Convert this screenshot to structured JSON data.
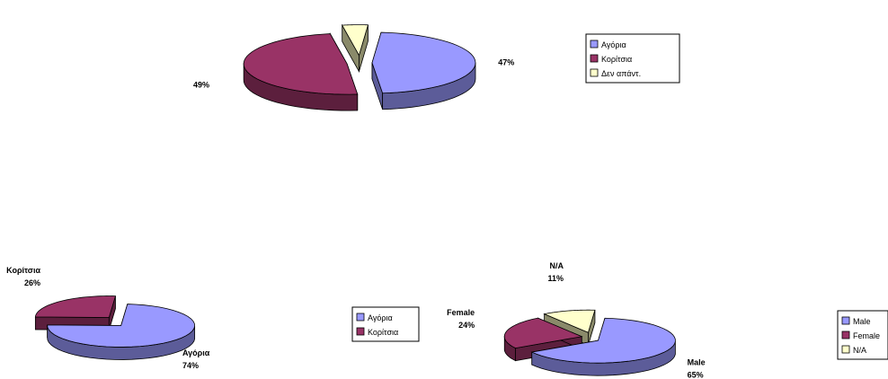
{
  "colors": {
    "slice1": "#9999ff",
    "slice2": "#993366",
    "slice3": "#ffffcc",
    "slice3_side": "#8a8a6a",
    "outline": "#000000"
  },
  "chart_data": [
    {
      "type": "pie",
      "style": "3d-exploded",
      "slices": [
        {
          "label": "Αγόρια",
          "value": 47,
          "value_label": "47%"
        },
        {
          "label": "Κορίτσια",
          "value": 49,
          "value_label": "49%"
        },
        {
          "label": "Δεν απάντ.",
          "value": 4,
          "value_label": "4%"
        }
      ],
      "legend": [
        "Αγόρια",
        "Κορίτσια",
        "Δεν απάντ."
      ],
      "legend_position": "right"
    },
    {
      "type": "pie",
      "style": "3d-exploded",
      "slices": [
        {
          "label": "Αγόρια",
          "value": 74,
          "value_label": "74%"
        },
        {
          "label": "Κορίτσια",
          "value": 26,
          "value_label": "26%"
        }
      ],
      "legend": [
        "Αγόρια",
        "Κορίτσια"
      ],
      "legend_position": "right"
    },
    {
      "type": "pie",
      "style": "3d-exploded",
      "slices": [
        {
          "label": "Male",
          "value": 65,
          "value_label": "65%"
        },
        {
          "label": "Female",
          "value": 24,
          "value_label": "24%"
        },
        {
          "label": "N/A",
          "value": 11,
          "value_label": "11%"
        }
      ],
      "legend": [
        "Male",
        "Female",
        "N/A"
      ],
      "legend_position": "right"
    }
  ]
}
